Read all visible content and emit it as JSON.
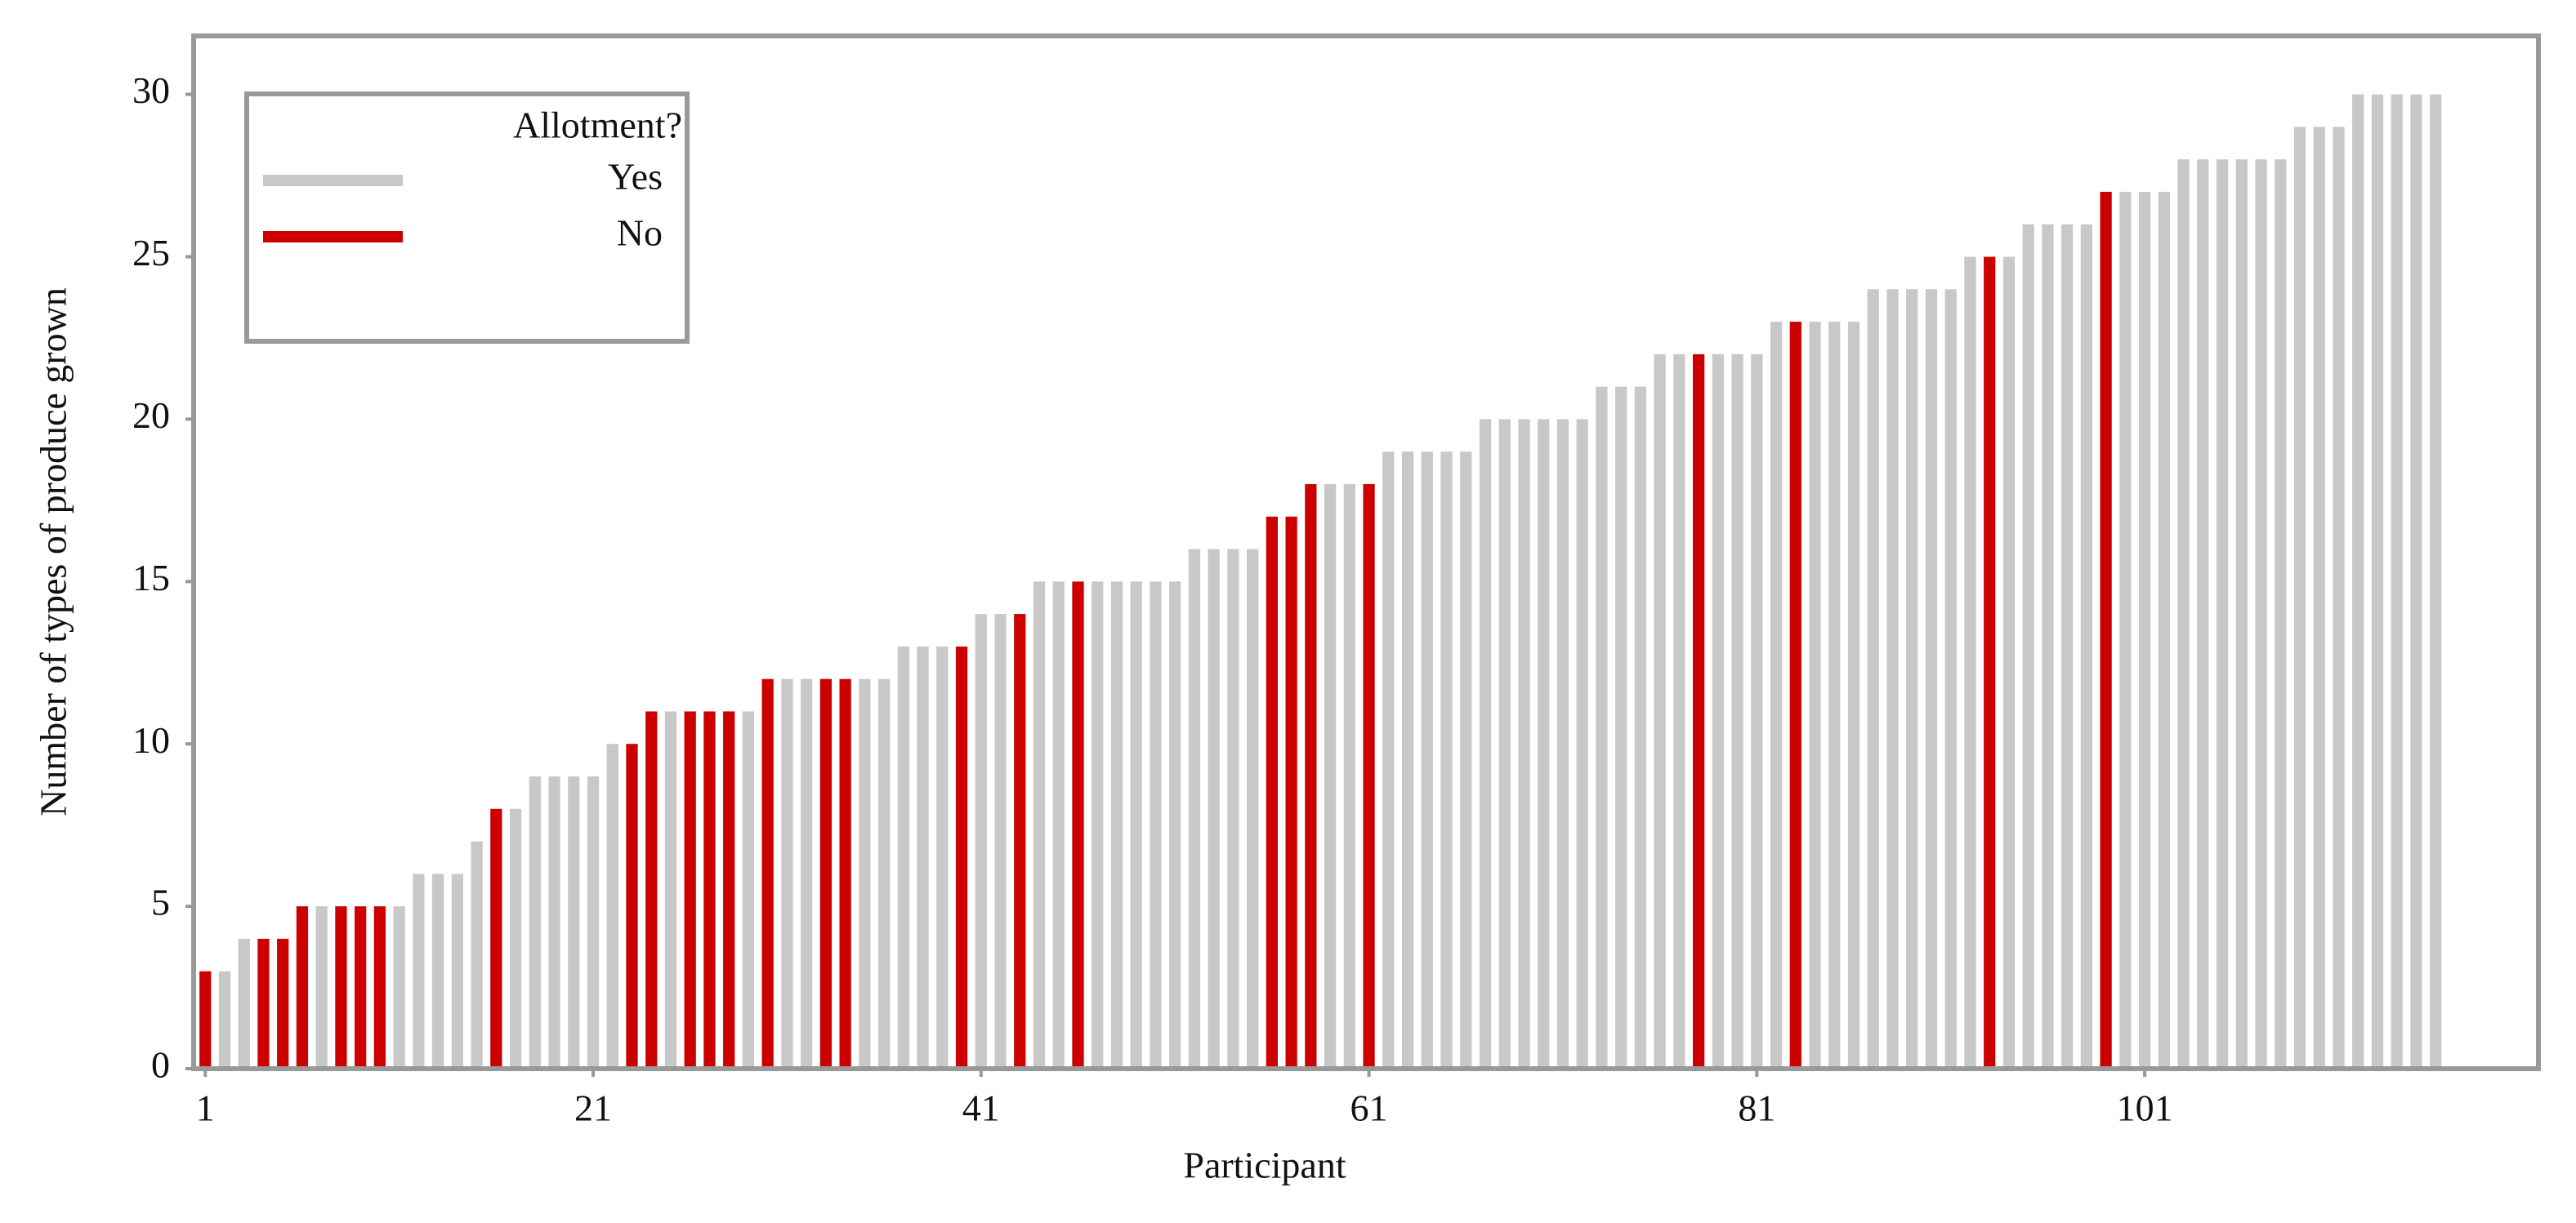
{
  "chart_data": {
    "type": "bar",
    "xlabel": "Participant",
    "ylabel": "Number of types of produce grown",
    "legend_title": "Allotment?",
    "legend_position": "upper left",
    "x": [
      1,
      2,
      3,
      4,
      5,
      6,
      7,
      8,
      9,
      10,
      11,
      12,
      13,
      14,
      15,
      16,
      17,
      18,
      19,
      20,
      21,
      22,
      23,
      24,
      25,
      26,
      27,
      28,
      29,
      30,
      31,
      32,
      33,
      34,
      35,
      36,
      37,
      38,
      39,
      40,
      41,
      42,
      43,
      44,
      45,
      46,
      47,
      48,
      49,
      50,
      51,
      52,
      53,
      54,
      55,
      56,
      57,
      58,
      59,
      60,
      61,
      62,
      63,
      64,
      65,
      66,
      67,
      68,
      69,
      70,
      71,
      72,
      73,
      74,
      75,
      76,
      77,
      78,
      79,
      80,
      81,
      82,
      83,
      84,
      85,
      86,
      87,
      88,
      89,
      90,
      91,
      92,
      93,
      94,
      95,
      96,
      97,
      98,
      99,
      100,
      101,
      102,
      103,
      104,
      105,
      106,
      107,
      108,
      109,
      110,
      111,
      112,
      113,
      114,
      115,
      116
    ],
    "series": [
      {
        "name": "Yes",
        "color": "#c8c8c8",
        "values": [
          null,
          3,
          4,
          null,
          null,
          null,
          5,
          null,
          null,
          null,
          5,
          6,
          6,
          6,
          7,
          null,
          8,
          9,
          9,
          9,
          9,
          10,
          null,
          null,
          11,
          null,
          null,
          null,
          11,
          null,
          12,
          12,
          null,
          null,
          12,
          12,
          13,
          13,
          13,
          null,
          14,
          14,
          null,
          15,
          15,
          null,
          15,
          15,
          15,
          15,
          15,
          16,
          16,
          16,
          16,
          null,
          null,
          null,
          18,
          18,
          null,
          19,
          19,
          19,
          19,
          19,
          20,
          20,
          20,
          20,
          20,
          20,
          21,
          21,
          21,
          22,
          22,
          null,
          22,
          22,
          22,
          23,
          null,
          23,
          23,
          23,
          24,
          24,
          24,
          24,
          24,
          25,
          null,
          25,
          26,
          26,
          26,
          26,
          null,
          27,
          27,
          27,
          28,
          28,
          28,
          28,
          28,
          28,
          29,
          29,
          29,
          30,
          30,
          30,
          30,
          30
        ]
      },
      {
        "name": "No",
        "color": "#cc0000",
        "values": [
          3,
          null,
          null,
          4,
          4,
          5,
          null,
          5,
          5,
          5,
          null,
          null,
          null,
          null,
          null,
          8,
          null,
          null,
          null,
          null,
          null,
          null,
          10,
          11,
          null,
          11,
          11,
          11,
          null,
          12,
          null,
          null,
          12,
          12,
          null,
          null,
          null,
          null,
          null,
          13,
          null,
          null,
          14,
          null,
          null,
          15,
          null,
          null,
          null,
          null,
          null,
          null,
          null,
          null,
          null,
          17,
          17,
          18,
          null,
          null,
          18,
          null,
          null,
          null,
          null,
          null,
          null,
          null,
          null,
          null,
          null,
          null,
          null,
          null,
          null,
          null,
          null,
          22,
          null,
          null,
          null,
          null,
          23,
          null,
          null,
          null,
          null,
          null,
          null,
          null,
          null,
          null,
          25,
          null,
          null,
          null,
          null,
          null,
          27,
          null,
          null,
          null,
          null,
          null,
          null,
          null,
          null,
          null,
          null,
          null,
          null,
          null,
          null,
          null,
          null,
          null
        ]
      }
    ],
    "xlim": [
      0.4,
      121.3
    ],
    "xticks": [
      1,
      21,
      41,
      61,
      81,
      101
    ],
    "ylim": [
      0,
      31.8
    ],
    "yticks": [
      0,
      5,
      10,
      15,
      20,
      25,
      30
    ],
    "grid": false
  }
}
